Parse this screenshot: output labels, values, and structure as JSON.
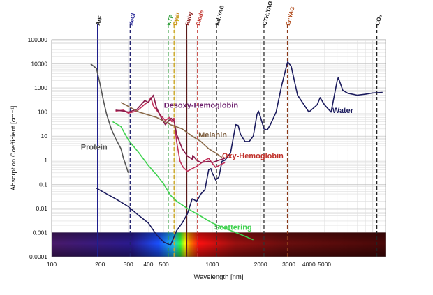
{
  "chart_data": {
    "type": "line",
    "xscale": "log",
    "yscale": "log",
    "xlim": [
      100,
      12000
    ],
    "ylim": [
      0.0001,
      100000
    ],
    "xlabel": "Wavelength [nm]",
    "ylabel": "Absorption Coefficient [cm⁻¹]",
    "grid": true,
    "x_ticks": [
      {
        "label": "100",
        "value": 100
      },
      {
        "label": "200",
        "value": 200
      },
      {
        "label": "300",
        "value": 300
      },
      {
        "label": "400",
        "value": 400
      },
      {
        "label": "500",
        "value": 500
      },
      {
        "label": "1000",
        "value": 1000
      },
      {
        "label": "2000",
        "value": 2000
      },
      {
        "label": "3000",
        "value": 3000
      },
      {
        "label": "4000",
        "value": 4000
      },
      {
        "label": "5000",
        "value": 5000
      }
    ],
    "y_ticks": [
      {
        "label": "100000",
        "value": 100000
      },
      {
        "label": "10000",
        "value": 10000
      },
      {
        "label": "1000",
        "value": 1000
      },
      {
        "label": "100",
        "value": 100
      },
      {
        "label": "10",
        "value": 10
      },
      {
        "label": "1",
        "value": 1
      },
      {
        "label": "0.1",
        "value": 0.1
      },
      {
        "label": "0.01",
        "value": 0.01
      },
      {
        "label": "0.001",
        "value": 0.001
      },
      {
        "label": "0.0001",
        "value": 0.0001
      }
    ],
    "lasers": [
      {
        "label": "ArF",
        "wavelength": 193,
        "color": "#1f1f8c",
        "style": "solid",
        "label_color": "#222222"
      },
      {
        "label": "XeCl",
        "wavelength": 308,
        "color": "#1f1f6e",
        "style": "dashed",
        "label_color": "#2b2b99"
      },
      {
        "label": "KTP",
        "wavelength": 532,
        "color": "#2f9e3a",
        "style": "dashed",
        "label_color": "#2f9e3a"
      },
      {
        "label": "Dye",
        "wavelength": 585,
        "color": "#d9d200",
        "style": "solid",
        "label_color": "#c9b800"
      },
      {
        "label": "CuBr",
        "wavelength": 578,
        "color": "#c9a12a",
        "style": "dashed",
        "label_color": "#c98a2a"
      },
      {
        "label": "Ruby",
        "wavelength": 694,
        "color": "#5a1a1a",
        "style": "solid",
        "label_color": "#8a1a1a"
      },
      {
        "label": "Diode",
        "wavelength": 810,
        "color": "#c0302a",
        "style": "dashed",
        "label_color": "#c0302a"
      },
      {
        "label": "Nd:YAG",
        "wavelength": 1064,
        "color": "#333333",
        "style": "dashed",
        "label_color": "#222222"
      },
      {
        "label": "CTH:YAG",
        "wavelength": 2100,
        "color": "#333333",
        "style": "dashed",
        "label_color": "#222222"
      },
      {
        "label": "Er:YAG",
        "wavelength": 2940,
        "color": "#8a3a1a",
        "style": "dashed",
        "label_color": "#b04a1a"
      },
      {
        "label": "CO₂",
        "wavelength": 10600,
        "color": "#222222",
        "style": "dashed",
        "label_color": "#222222"
      }
    ],
    "series": [
      {
        "name": "Water",
        "color": "#1c1c5e",
        "label_pos": [
          5600,
          90
        ],
        "label_color": "#1c1c5e",
        "points": [
          [
            190,
            0.07
          ],
          [
            220,
            0.04
          ],
          [
            250,
            0.025
          ],
          [
            300,
            0.012
          ],
          [
            350,
            0.005
          ],
          [
            400,
            0.0025
          ],
          [
            450,
            0.0008
          ],
          [
            500,
            0.0004
          ],
          [
            550,
            0.0003
          ],
          [
            600,
            0.0012
          ],
          [
            650,
            0.0025
          ],
          [
            700,
            0.006
          ],
          [
            750,
            0.025
          ],
          [
            800,
            0.02
          ],
          [
            850,
            0.04
          ],
          [
            900,
            0.06
          ],
          [
            950,
            0.4
          ],
          [
            980,
            0.45
          ],
          [
            1000,
            0.3
          ],
          [
            1050,
            0.15
          ],
          [
            1100,
            0.2
          ],
          [
            1150,
            0.9
          ],
          [
            1200,
            1.0
          ],
          [
            1300,
            2.0
          ],
          [
            1400,
            30
          ],
          [
            1450,
            28
          ],
          [
            1500,
            12
          ],
          [
            1600,
            6
          ],
          [
            1700,
            6
          ],
          [
            1800,
            10
          ],
          [
            1900,
            80
          ],
          [
            1940,
            110
          ],
          [
            2000,
            60
          ],
          [
            2100,
            20
          ],
          [
            2200,
            18
          ],
          [
            2300,
            30
          ],
          [
            2500,
            100
          ],
          [
            2700,
            1200
          ],
          [
            2900,
            8000
          ],
          [
            2950,
            12000
          ],
          [
            3100,
            8000
          ],
          [
            3400,
            500
          ],
          [
            4000,
            100
          ],
          [
            4500,
            200
          ],
          [
            4700,
            400
          ],
          [
            5000,
            200
          ],
          [
            5500,
            100
          ],
          [
            6000,
            2000
          ],
          [
            6100,
            2700
          ],
          [
            6500,
            800
          ],
          [
            7000,
            600
          ],
          [
            8000,
            500
          ],
          [
            9000,
            550
          ],
          [
            10000,
            620
          ],
          [
            11500,
            650
          ]
        ]
      },
      {
        "name": "Protein",
        "color": "#555555",
        "label_pos": [
          152,
          2.8
        ],
        "label_color": "#555555",
        "points": [
          [
            175,
            10000
          ],
          [
            190,
            6500
          ],
          [
            200,
            1500
          ],
          [
            210,
            300
          ],
          [
            220,
            80
          ],
          [
            235,
            20
          ],
          [
            250,
            8
          ],
          [
            270,
            3
          ],
          [
            280,
            1.2
          ],
          [
            290,
            0.6
          ],
          [
            300,
            0.3
          ]
        ]
      },
      {
        "name": "Oxy-Hemoglobin",
        "color": "#c2305a",
        "label_pos": [
          1150,
          1.2
        ],
        "label_color": "#c0302a",
        "points": [
          [
            250,
            110
          ],
          [
            280,
            120
          ],
          [
            300,
            90
          ],
          [
            340,
            110
          ],
          [
            380,
            210
          ],
          [
            400,
            260
          ],
          [
            415,
            400
          ],
          [
            430,
            180
          ],
          [
            450,
            120
          ],
          [
            480,
            70
          ],
          [
            510,
            45
          ],
          [
            542,
            60
          ],
          [
            560,
            40
          ],
          [
            577,
            55
          ],
          [
            600,
            6
          ],
          [
            630,
            0.9
          ],
          [
            660,
            0.5
          ],
          [
            700,
            0.35
          ],
          [
            750,
            0.45
          ],
          [
            800,
            0.55
          ],
          [
            850,
            0.75
          ],
          [
            900,
            1.0
          ],
          [
            950,
            1.2
          ],
          [
            1000,
            0.75
          ],
          [
            1050,
            0.5
          ],
          [
            1100,
            0.6
          ],
          [
            1200,
            0.8
          ]
        ]
      },
      {
        "name": "Desoxy-Hemoglobin",
        "color": "#8a1a4a",
        "label_pos": [
          500,
          150
        ],
        "label_color": "#6a1a6a",
        "points": [
          [
            250,
            120
          ],
          [
            280,
            110
          ],
          [
            300,
            100
          ],
          [
            340,
            130
          ],
          [
            380,
            300
          ],
          [
            400,
            250
          ],
          [
            430,
            500
          ],
          [
            450,
            150
          ],
          [
            480,
            60
          ],
          [
            510,
            30
          ],
          [
            555,
            55
          ],
          [
            580,
            40
          ],
          [
            600,
            12
          ],
          [
            650,
            3
          ],
          [
            700,
            1.5
          ],
          [
            750,
            1.1
          ],
          [
            757,
            1.6
          ],
          [
            800,
            1.0
          ],
          [
            850,
            0.8
          ],
          [
            900,
            0.85
          ],
          [
            950,
            0.9
          ],
          [
            1000,
            0.8
          ],
          [
            1100,
            1.0
          ],
          [
            1200,
            1.2
          ]
        ]
      },
      {
        "name": "Melanin",
        "color": "#8a6a4a",
        "label_pos": [
          820,
          9
        ],
        "label_color": "#7a5a3a",
        "points": [
          [
            270,
            250
          ],
          [
            350,
            100
          ],
          [
            450,
            60
          ],
          [
            550,
            30
          ],
          [
            650,
            20
          ],
          [
            750,
            10
          ],
          [
            850,
            6
          ],
          [
            950,
            3
          ],
          [
            1050,
            2
          ],
          [
            1150,
            1.3
          ]
        ]
      },
      {
        "name": "Scattering",
        "color": "#3fd24f",
        "label_pos": [
          1030,
          0.0013
        ],
        "label_color": "#3fd24f",
        "points": [
          [
            240,
            40
          ],
          [
            270,
            25
          ],
          [
            300,
            7
          ],
          [
            350,
            2
          ],
          [
            400,
            0.6
          ],
          [
            450,
            0.25
          ],
          [
            500,
            0.1
          ],
          [
            550,
            0.035
          ],
          [
            600,
            0.02
          ],
          [
            700,
            0.01
          ],
          [
            800,
            0.006
          ],
          [
            1000,
            0.0025
          ],
          [
            1200,
            0.0015
          ],
          [
            1400,
            0.001
          ],
          [
            1600,
            0.0007
          ],
          [
            1800,
            0.0005
          ]
        ]
      }
    ]
  }
}
